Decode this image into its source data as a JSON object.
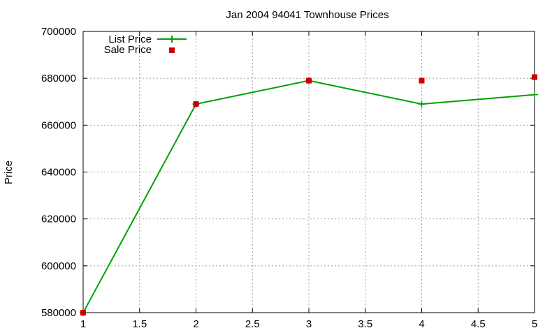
{
  "chart_data": {
    "type": "line",
    "title": "Jan 2004 94041 Townhouse Prices",
    "xlabel": "",
    "ylabel": "Price",
    "xlim": [
      1,
      5
    ],
    "ylim": [
      580000,
      700000
    ],
    "grid": true,
    "legend_position": "top-left",
    "x_ticks": [
      "1",
      "1.5",
      "2",
      "2.5",
      "3",
      "3.5",
      "4",
      "4.5",
      "5"
    ],
    "y_ticks": [
      "580000",
      "600000",
      "620000",
      "640000",
      "660000",
      "680000",
      "700000"
    ],
    "x": [
      1,
      2,
      3,
      4,
      5
    ],
    "series": [
      {
        "name": "List Price",
        "style": "linespoints",
        "color": "#00a000",
        "values": [
          580000,
          669000,
          679000,
          669000,
          673000
        ]
      },
      {
        "name": "Sale Price",
        "style": "points",
        "color": "#cc0000",
        "values": [
          580000,
          669000,
          679000,
          679000,
          680500
        ]
      }
    ]
  }
}
